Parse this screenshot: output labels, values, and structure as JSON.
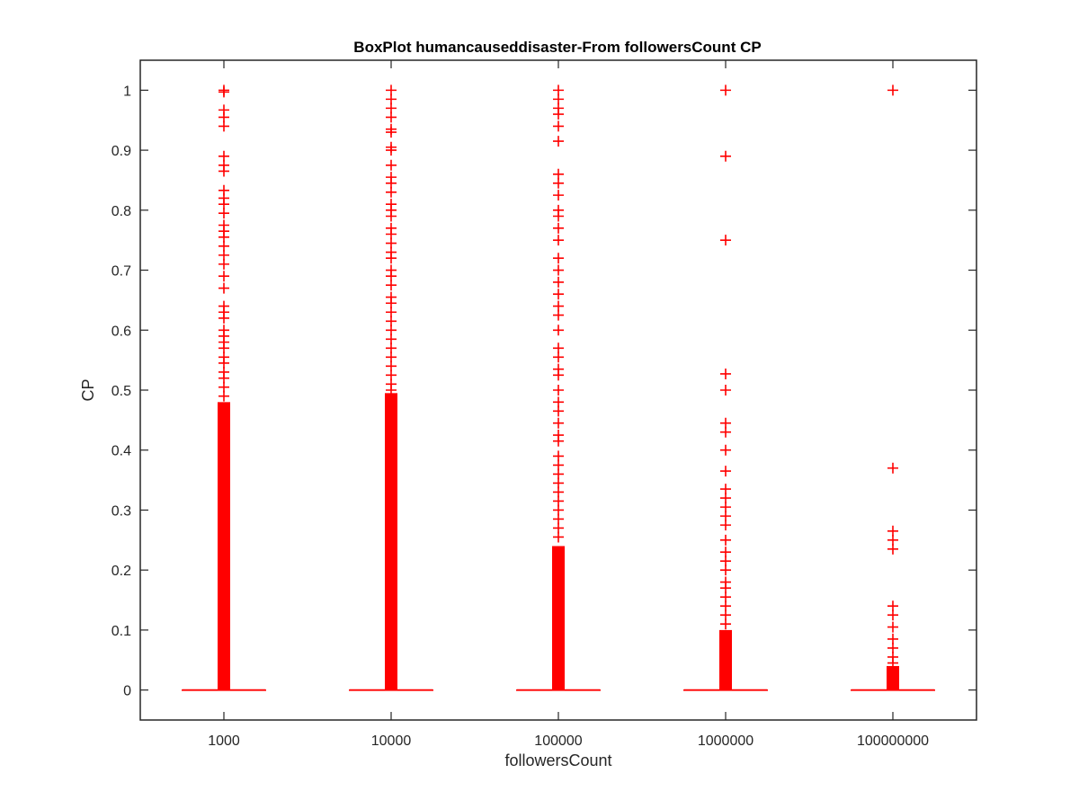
{
  "chart_data": {
    "type": "box",
    "title": "BoxPlot humancauseddisaster-From followersCount CP",
    "xlabel": "followersCount",
    "ylabel": "CP",
    "categories": [
      "1000",
      "10000",
      "100000",
      "1000000",
      "100000000"
    ],
    "y_ticks": [
      "0",
      "0.1",
      "0.2",
      "0.3",
      "0.4",
      "0.5",
      "0.6",
      "0.7",
      "0.8",
      "0.9",
      "1"
    ],
    "ylim": [
      -0.05,
      1.05
    ],
    "grid": false,
    "legend": "none",
    "series_color": "#ff0000",
    "groups": [
      {
        "label": "1000",
        "median": 0,
        "q1": 0,
        "q3": 0,
        "whisker_low": 0,
        "whisker_high": 0,
        "dense_outlier_range": [
          0,
          0.48
        ],
        "outliers": [
          1.0,
          0.997,
          0.967,
          0.955,
          0.94,
          0.89,
          0.875,
          0.865,
          0.833,
          0.82,
          0.81,
          0.795,
          0.775,
          0.765,
          0.755,
          0.74,
          0.725,
          0.71,
          0.69,
          0.67,
          0.64,
          0.63,
          0.62,
          0.6,
          0.59,
          0.58,
          0.57,
          0.555,
          0.545,
          0.53,
          0.52,
          0.505,
          0.49
        ]
      },
      {
        "label": "10000",
        "median": 0,
        "q1": 0,
        "q3": 0,
        "whisker_low": 0,
        "whisker_high": 0,
        "dense_outlier_range": [
          0,
          0.495
        ],
        "outliers": [
          1.0,
          0.985,
          0.97,
          0.955,
          0.935,
          0.93,
          0.905,
          0.9,
          0.875,
          0.855,
          0.845,
          0.83,
          0.81,
          0.8,
          0.79,
          0.77,
          0.76,
          0.745,
          0.73,
          0.72,
          0.7,
          0.69,
          0.675,
          0.655,
          0.645,
          0.63,
          0.615,
          0.6,
          0.585,
          0.57,
          0.555,
          0.54,
          0.525,
          0.51,
          0.5
        ]
      },
      {
        "label": "100000",
        "median": 0,
        "q1": 0,
        "q3": 0,
        "whisker_low": 0,
        "whisker_high": 0,
        "dense_outlier_range": [
          0,
          0.24
        ],
        "outliers": [
          1.0,
          0.985,
          0.97,
          0.96,
          0.94,
          0.915,
          0.86,
          0.845,
          0.825,
          0.8,
          0.79,
          0.77,
          0.75,
          0.72,
          0.7,
          0.68,
          0.66,
          0.64,
          0.625,
          0.6,
          0.57,
          0.555,
          0.535,
          0.525,
          0.5,
          0.48,
          0.465,
          0.445,
          0.425,
          0.415,
          0.39,
          0.375,
          0.36,
          0.345,
          0.33,
          0.315,
          0.3,
          0.285,
          0.27,
          0.255
        ]
      },
      {
        "label": "1000000",
        "median": 0,
        "q1": 0,
        "q3": 0,
        "whisker_low": 0,
        "whisker_high": 0,
        "dense_outlier_range": [
          0,
          0.1
        ],
        "outliers": [
          1.0,
          0.89,
          0.75,
          0.527,
          0.5,
          0.445,
          0.43,
          0.4,
          0.365,
          0.335,
          0.32,
          0.305,
          0.29,
          0.275,
          0.25,
          0.23,
          0.215,
          0.2,
          0.18,
          0.17,
          0.155,
          0.14,
          0.125,
          0.11
        ]
      },
      {
        "label": "100000000",
        "median": 0,
        "q1": 0,
        "q3": 0,
        "whisker_low": 0,
        "whisker_high": 0,
        "dense_outlier_range": [
          0,
          0.04
        ],
        "outliers": [
          1.0,
          0.37,
          0.265,
          0.25,
          0.235,
          0.14,
          0.125,
          0.105,
          0.085,
          0.07,
          0.055,
          0.045
        ]
      }
    ]
  }
}
